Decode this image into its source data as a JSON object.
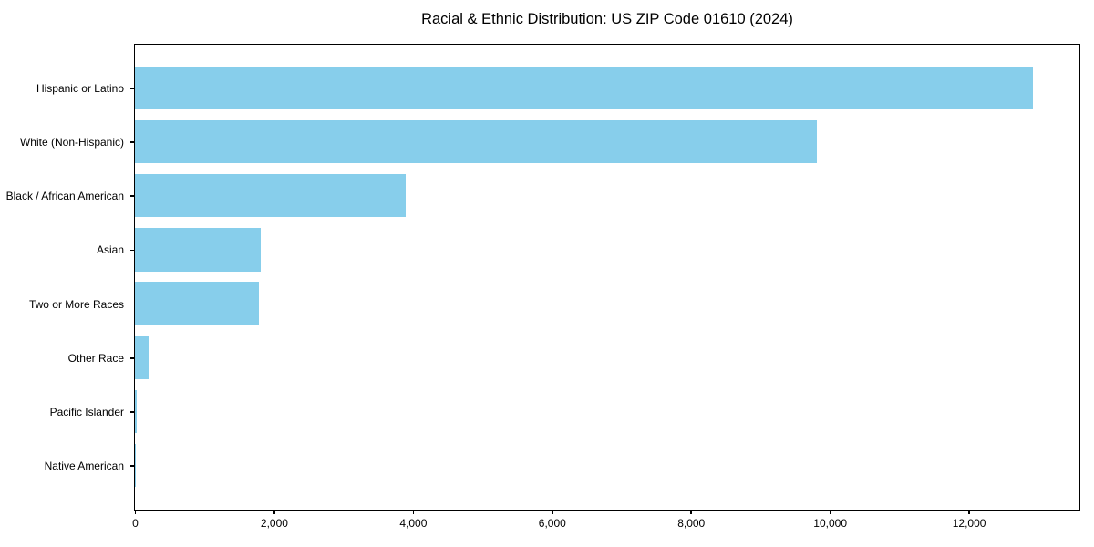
{
  "chart_data": {
    "type": "bar",
    "orientation": "horizontal",
    "title": "Racial & Ethnic Distribution: US ZIP Code 01610 (2024)",
    "categories": [
      "Hispanic or Latino",
      "White (Non-Hispanic)",
      "Black / African American",
      "Asian",
      "Two or More Races",
      "Other Race",
      "Pacific Islander",
      "Native American"
    ],
    "values": [
      12930,
      9810,
      3900,
      1810,
      1780,
      195,
      25,
      10
    ],
    "xlabel": "",
    "ylabel": "",
    "xlim": [
      0,
      13580
    ],
    "x_ticks": [
      0,
      2000,
      4000,
      6000,
      8000,
      10000,
      12000
    ],
    "x_tick_labels": [
      "0",
      "2,000",
      "4,000",
      "6,000",
      "8,000",
      "10,000",
      "12,000"
    ],
    "bar_color": "#87CEEB",
    "spine_color": "#000000",
    "background_color": "#ffffff",
    "grid": false,
    "legend": false
  }
}
